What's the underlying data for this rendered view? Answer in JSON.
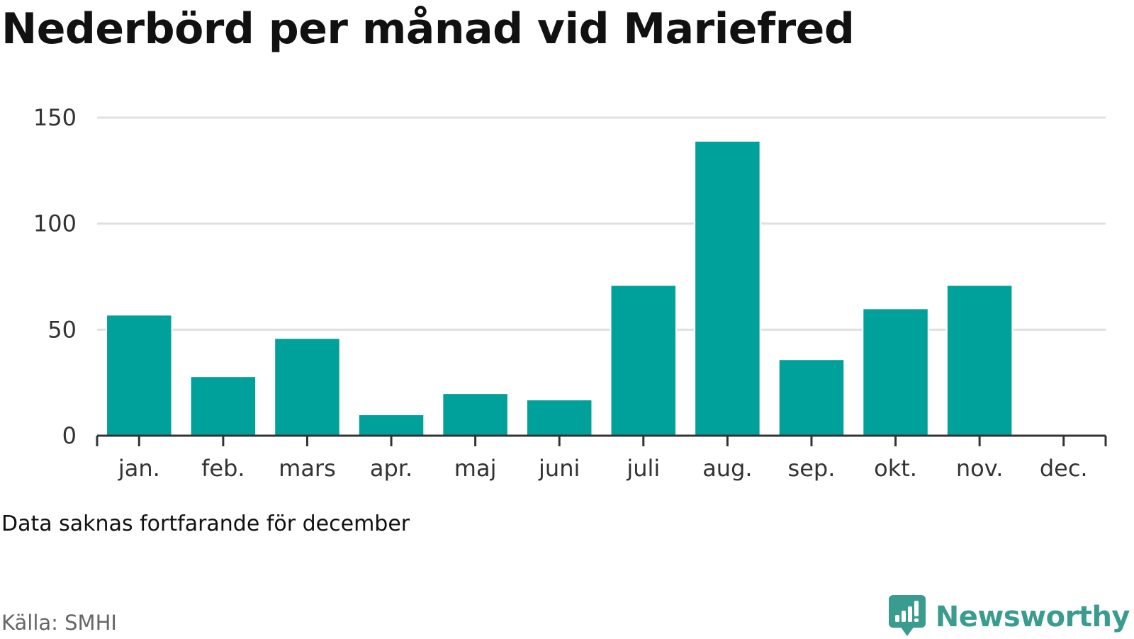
{
  "header": {
    "title": "Nederbörd per månad vid Mariefred"
  },
  "footer": {
    "note": "Data saknas fortfarande för december",
    "source": "Källa: SMHI",
    "brand": "Newsworthy",
    "brand_icon": "chart-bubble-icon"
  },
  "colors": {
    "bar": "#00a19a",
    "grid": "#e0e0e0",
    "axis": "#333333",
    "brand": "#3a9c8e"
  },
  "chart_data": {
    "type": "bar",
    "title": "Nederbörd per månad vid Mariefred",
    "xlabel": "",
    "ylabel": "",
    "categories": [
      "jan.",
      "feb.",
      "mars",
      "apr.",
      "maj",
      "juni",
      "juli",
      "aug.",
      "sep.",
      "okt.",
      "nov.",
      "dec."
    ],
    "values": [
      57,
      28,
      46,
      10,
      20,
      17,
      71,
      139,
      36,
      60,
      71,
      null
    ],
    "ylim": [
      0,
      150
    ],
    "yticks": [
      0,
      50,
      100,
      150
    ],
    "grid": true,
    "legend": false
  }
}
